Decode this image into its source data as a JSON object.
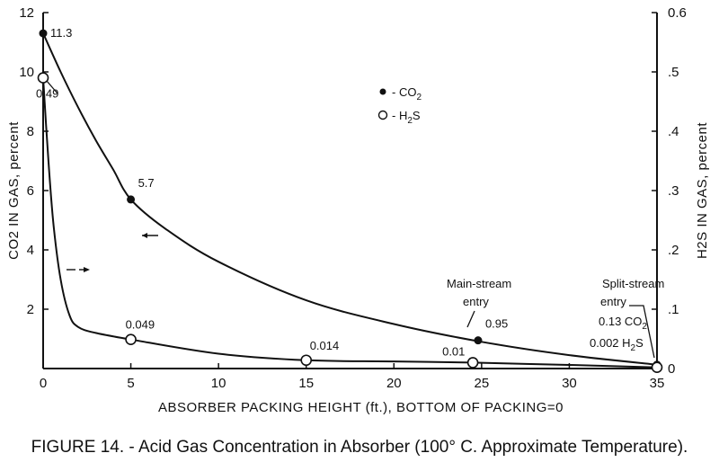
{
  "caption": "FIGURE 14. - Acid Gas Concentration in Absorber (100° C. Approximate Temperature).",
  "chart_data": {
    "type": "line",
    "xlabel": "ABSORBER PACKING HEIGHT (ft.), BOTTOM OF PACKING=0",
    "ylabel_left": "CO2 IN GAS, percent",
    "ylabel_right": "H2S IN GAS, percent",
    "xlim": [
      0,
      35
    ],
    "ylim_left": [
      0,
      12
    ],
    "ylim_right": [
      0,
      0.6
    ],
    "x_ticks": [
      "0",
      "5",
      "10",
      "15",
      "20",
      "25",
      "30",
      "35"
    ],
    "y_left_ticks": [
      "2",
      "4",
      "6",
      "8",
      "10",
      "12"
    ],
    "y_right_ticks": [
      "0",
      ".1",
      ".2",
      ".3",
      ".4",
      ".5",
      "0.6"
    ],
    "legend": [
      {
        "marker": "filled-circle",
        "label": "- CO2"
      },
      {
        "marker": "open-circle",
        "label": "- H2S"
      }
    ],
    "series": [
      {
        "name": "CO2",
        "axis": "left",
        "marker": "filled",
        "points": [
          {
            "x": 0,
            "y": 11.3,
            "label": "11.3"
          },
          {
            "x": 5,
            "y": 5.7,
            "label": "5.7"
          },
          {
            "x": 24.8,
            "y": 0.95,
            "label": "0.95"
          },
          {
            "x": 35,
            "y": 0.13,
            "label": ""
          }
        ],
        "curve": [
          [
            0,
            11.3
          ],
          [
            1,
            10.0
          ],
          [
            2,
            8.8
          ],
          [
            3,
            7.7
          ],
          [
            4,
            6.7
          ],
          [
            5,
            5.7
          ],
          [
            7,
            4.7
          ],
          [
            10,
            3.6
          ],
          [
            15,
            2.3
          ],
          [
            20,
            1.5
          ],
          [
            25,
            0.9
          ],
          [
            30,
            0.45
          ],
          [
            35,
            0.13
          ]
        ]
      },
      {
        "name": "H2S",
        "axis": "right",
        "marker": "open",
        "points": [
          {
            "x": 0,
            "y": 0.49,
            "label": "0.49"
          },
          {
            "x": 5,
            "y": 0.049,
            "label": "0.049"
          },
          {
            "x": 15,
            "y": 0.014,
            "label": "0.014"
          },
          {
            "x": 24.5,
            "y": 0.01,
            "label": "0.01"
          },
          {
            "x": 35,
            "y": 0.002,
            "label": ""
          }
        ],
        "curve": [
          [
            0,
            0.49
          ],
          [
            0.3,
            0.35
          ],
          [
            0.6,
            0.24
          ],
          [
            1,
            0.15
          ],
          [
            1.5,
            0.09
          ],
          [
            2,
            0.07
          ],
          [
            3,
            0.06
          ],
          [
            5,
            0.049
          ],
          [
            10,
            0.025
          ],
          [
            15,
            0.014
          ],
          [
            20,
            0.012
          ],
          [
            24.5,
            0.01
          ],
          [
            30,
            0.006
          ],
          [
            35,
            0.002
          ]
        ]
      }
    ],
    "annotations": {
      "main_stream_line1": "Main-stream",
      "main_stream_line2": "entry",
      "split_stream_line1": "Split-stream",
      "split_stream_line2": "entry",
      "split_co2": "0.13 CO2",
      "split_h2s": "0.002 H2S"
    }
  }
}
